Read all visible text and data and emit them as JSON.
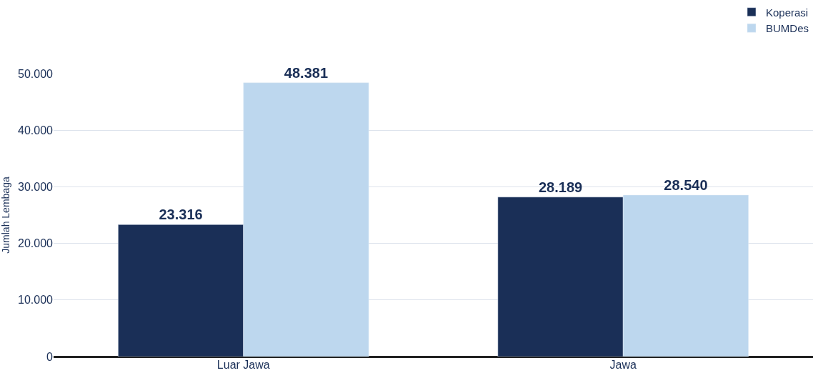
{
  "chart_data": {
    "type": "bar",
    "ylabel": "Jumlah Lembaga",
    "categories": [
      "Luar Jawa",
      "Jawa"
    ],
    "series": [
      {
        "name": "Koperasi",
        "color": "#1a2f57",
        "values": [
          23316,
          28189
        ],
        "value_labels": [
          "23.316",
          "28.189"
        ]
      },
      {
        "name": "BUMDes",
        "color": "#bdd7ee",
        "values": [
          48381,
          28540
        ],
        "value_labels": [
          "48.381",
          "28.540"
        ]
      }
    ],
    "ylim": [
      0,
      50000
    ],
    "yticks": [
      {
        "value": 0,
        "label": "0"
      },
      {
        "value": 10000,
        "label": "10.000"
      },
      {
        "value": 20000,
        "label": "20.000"
      },
      {
        "value": 30000,
        "label": "30.000"
      },
      {
        "value": 40000,
        "label": "40.000"
      },
      {
        "value": 50000,
        "label": "50.000"
      }
    ],
    "grid": "y",
    "legend": "top right"
  }
}
